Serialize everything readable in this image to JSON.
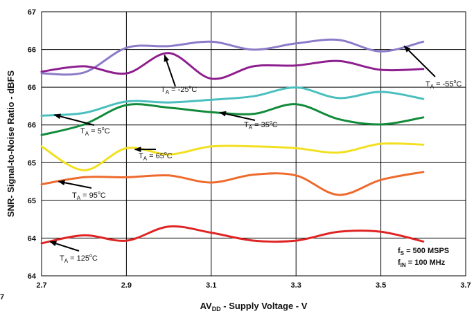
{
  "chart_data": {
    "type": "line",
    "xlabel_main": "AV",
    "xlabel_sub": "DD",
    "xlabel_rest": " - Supply Voltage - V",
    "ylabel": "SNR- Signal-to-Noise Ratio - dBFS",
    "xlim": [
      2.7,
      3.7
    ],
    "x_ticks": [
      "2.7",
      "2.9",
      "3.1",
      "3.3",
      "3.5",
      "3.7"
    ],
    "y_ticks": [
      "67",
      "66",
      "66",
      "66",
      "65",
      "65",
      "64",
      "64"
    ],
    "grid": true,
    "page_fragment": "7",
    "notes": [
      {
        "main": "f",
        "sub": "S",
        "rest": " = 500 MSPS"
      },
      {
        "main": "f",
        "sub": "IN",
        "rest": " = 100 MHz"
      }
    ],
    "series": [
      {
        "color": "#8B7BC8",
        "label_pre": "T",
        "label_sub": "A",
        "label_val": " = -55",
        "label_post": "C",
        "x": [
          2.7,
          2.8,
          2.9,
          3.0,
          3.1,
          3.2,
          3.3,
          3.4,
          3.5,
          3.6
        ],
        "y": [
          66.3,
          66.31,
          66.59,
          66.61,
          66.66,
          66.57,
          66.64,
          66.68,
          66.55,
          66.66
        ]
      },
      {
        "color": "#8E1F8E",
        "label_pre": "T",
        "label_sub": "A",
        "label_val": " = -25",
        "label_post": "C",
        "x": [
          2.7,
          2.8,
          2.9,
          3.0,
          3.1,
          3.2,
          3.3,
          3.4,
          3.5,
          3.6
        ],
        "y": [
          66.32,
          66.38,
          66.3,
          66.53,
          66.24,
          66.38,
          66.39,
          66.44,
          66.34,
          66.35
        ]
      },
      {
        "color": "#4BBFBF",
        "label_pre": "T",
        "label_sub": "A",
        "label_val": " = 5",
        "label_post": "C",
        "x": [
          2.7,
          2.8,
          2.9,
          3.0,
          3.1,
          3.2,
          3.3,
          3.4,
          3.5,
          3.6
        ],
        "y": [
          65.82,
          65.85,
          65.98,
          65.97,
          66.0,
          66.04,
          66.14,
          66.02,
          66.09,
          66.01
        ]
      },
      {
        "color": "#118A3A",
        "label_pre": "T",
        "label_sub": "A",
        "label_val": " = 35",
        "label_post": "C",
        "x": [
          2.7,
          2.8,
          2.9,
          3.0,
          3.1,
          3.2,
          3.3,
          3.4,
          3.5,
          3.6
        ],
        "y": [
          65.6,
          65.72,
          65.94,
          65.91,
          65.86,
          65.84,
          65.95,
          65.78,
          65.72,
          65.8
        ]
      },
      {
        "color": "#F2E020",
        "label_pre": "T",
        "label_sub": "A",
        "label_val": " = 65",
        "label_post": "C",
        "x": [
          2.7,
          2.8,
          2.9,
          3.0,
          3.1,
          3.2,
          3.3,
          3.4,
          3.5,
          3.6
        ],
        "y": [
          65.47,
          65.2,
          65.45,
          65.38,
          65.47,
          65.47,
          65.45,
          65.4,
          65.5,
          65.49
        ]
      },
      {
        "color": "#EE6A2C",
        "label_pre": "T",
        "label_sub": "A",
        "label_val": " = 95",
        "label_post": "C",
        "x": [
          2.7,
          2.8,
          2.9,
          3.0,
          3.1,
          3.2,
          3.3,
          3.4,
          3.5,
          3.6
        ],
        "y": [
          65.04,
          65.12,
          65.12,
          65.14,
          65.06,
          65.15,
          65.14,
          64.92,
          65.09,
          65.18
        ]
      },
      {
        "color": "#E02424",
        "label_pre": "T",
        "label_sub": "A",
        "label_val": " = 125",
        "label_post": "C",
        "x": [
          2.7,
          2.8,
          2.9,
          3.0,
          3.1,
          3.2,
          3.3,
          3.4,
          3.5,
          3.6
        ],
        "y": [
          64.37,
          64.46,
          64.4,
          64.56,
          64.49,
          64.4,
          64.4,
          64.5,
          64.5,
          64.39
        ]
      }
    ]
  }
}
